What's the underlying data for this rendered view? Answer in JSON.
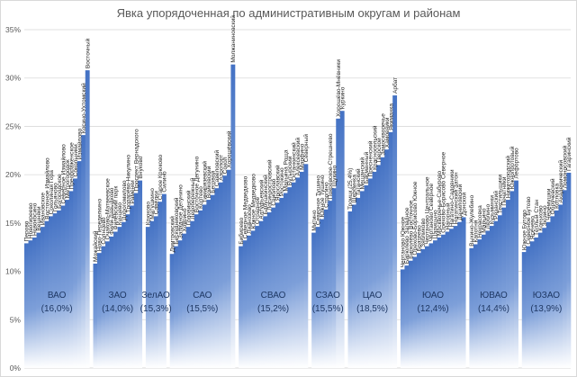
{
  "chart_data": {
    "type": "bar",
    "title": "Явка упорядоченная по административным округам и районам",
    "ylim": [
      0,
      35
    ],
    "yticks": [
      "0%",
      "5%",
      "10%",
      "15%",
      "20%",
      "25%",
      "30%",
      "35%"
    ],
    "grid": true,
    "bar_color": "#4472c4",
    "groups": [
      {
        "label": "ВАО",
        "pct": "(16,0%)",
        "districts": [
          "Перово",
          "Новогиреево",
          "Новокосино",
          "Вешняки",
          "Ивановское",
          "Восточное Измайлово",
          "Соколиная Гора",
          "Гольяново",
          "Богородское",
          "Северное Измайлово",
          "Метрогородок",
          "Преображенское",
          "Сокольники",
          "Измайлово",
          "Косино-Ухтомский",
          "Восточный"
        ],
        "values": [
          12.9,
          13.2,
          13.5,
          14.0,
          14.6,
          15.2,
          15.7,
          16.0,
          16.3,
          16.8,
          17.4,
          18.3,
          19.6,
          21.4,
          24.1,
          30.8
        ]
      },
      {
        "label": "ЗАО",
        "pct": "(14,0%)",
        "districts": [
          "Можайский",
          "Ново-Переделкино",
          "Солнцево",
          "Очаково-Матвеевское",
          "Фили-Давыдково",
          "Филёвский парк",
          "Кунцево",
          "Дорогомилово",
          "Тропарёво-Никулино",
          "Раменки",
          "Проспект Вернадского",
          "Внуково"
        ],
        "values": [
          10.8,
          11.9,
          12.6,
          13.1,
          13.6,
          14.1,
          14.6,
          15.1,
          15.9,
          16.8,
          18.1,
          19.4
        ]
      },
      {
        "label": "ЗелАО",
        "pct": "(15,3%)",
        "districts": [
          "Крюково",
          "Матушкино",
          "Савёлки",
          "Старое Крюково",
          "Силино"
        ],
        "values": [
          14.6,
          15.2,
          15.7,
          17.2,
          18.0
        ]
      },
      {
        "label": "САО",
        "pct": "(15,5%)",
        "districts": [
          "Дмитровский",
          "Бескудниковский",
          "Западное Дегунино",
          "Ховрино",
          "Головинский",
          "Левобережный",
          "Восточное Дегунино",
          "Коптево",
          "Тимирязевский",
          "Войковский",
          "Беговой",
          "Савёловский",
          "Аэропорт",
          "Сокол",
          "Хорошёвский",
          "Молжаниновский"
        ],
        "values": [
          11.8,
          12.6,
          13.2,
          13.9,
          14.6,
          15.2,
          15.9,
          16.3,
          16.9,
          17.4,
          17.9,
          18.6,
          19.2,
          19.9,
          20.5,
          31.4
        ]
      },
      {
        "label": "СВАО",
        "pct": "(15,2%)",
        "districts": [
          "Бибирево",
          "Северное Медведково",
          "Лианозово",
          "Южное Медведково",
          "Отрадное",
          "Алтуфьевский",
          "Бабушкинский",
          "Лосиноостровский",
          "Свиблово",
          "Ярославский",
          "Ростокино",
          "Марьина Роща",
          "Бутырский",
          "Останкинский",
          "Алексеевский",
          "Марфино",
          "Северный"
        ],
        "values": [
          12.6,
          13.2,
          13.7,
          14.2,
          14.7,
          15.2,
          15.7,
          16.1,
          16.6,
          17.1,
          17.6,
          18.1,
          18.7,
          19.2,
          19.7,
          20.3,
          21.1
        ]
      },
      {
        "label": "СЗАО",
        "pct": "(15,5%)",
        "districts": [
          "Митино",
          "Северное Тушино",
          "Южное Тушино",
          "Строгино",
          "Покровское-Стрешнево",
          "Щукино",
          "Хорошёво-Мнёвники",
          "Куркино"
        ],
        "values": [
          14.0,
          14.6,
          15.4,
          16.4,
          17.3,
          18.6,
          25.8,
          26.6
        ]
      },
      {
        "label": "ЦАО",
        "pct": "(18,5%)",
        "districts": [
          "Троицк (25,4%)",
          "Щербинка",
          "Таганский",
          "Мещанский",
          "Басманный",
          "Пресненский",
          "Красносельский",
          "Тверской",
          "Замоскворечье",
          "Хамовники",
          "Якиманка",
          "Арбат"
        ],
        "values": [
          16.2,
          16.9,
          17.6,
          18.3,
          18.9,
          19.6,
          20.3,
          21.0,
          21.8,
          22.6,
          24.4,
          28.2
        ]
      },
      {
        "label": "ЮАО",
        "pct": "(12,4%)",
        "districts": [
          "Чертаново Южное",
          "Бирюлёво Западное",
          "Бирюлёво Восточное",
          "Орехово-Борисово Южное",
          "Братеево",
          "Зябликово",
          "Чертаново Центральное",
          "Чертаново Северное",
          "Царицыно",
          "Москворечье-Сабурово",
          "Орехово-Борисово Северное",
          "Нагорный",
          "Нагатино-Садовники",
          "Нагатинский Затон",
          "Даниловский",
          "Донской"
        ],
        "values": [
          10.2,
          10.6,
          11.1,
          11.5,
          11.9,
          12.3,
          12.6,
          12.9,
          13.2,
          13.5,
          13.8,
          14.1,
          14.4,
          14.7,
          15.1,
          15.6
        ]
      },
      {
        "label": "ЮВАО",
        "pct": "(14,4%)",
        "districts": [
          "Выхино-Жулебино",
          "Капотня",
          "Некрасовка",
          "Марьино",
          "Люблино",
          "Кузьминки",
          "Рязанский",
          "Текстильщики",
          "Печатники",
          "Нижегородский",
          "Южнопортовый",
          "Лефортово"
        ],
        "values": [
          12.4,
          12.8,
          13.3,
          13.8,
          14.2,
          14.7,
          15.2,
          15.8,
          16.6,
          17.4,
          18.3,
          19.4
        ]
      },
      {
        "label": "ЮЗАО",
        "pct": "(13,9%)",
        "districts": [
          "Южное Бутово",
          "Северное Бутово",
          "Ясенево",
          "Тёплый Стан",
          "Коньково",
          "Зюзино",
          "Черёмушки",
          "Обручевский",
          "Котловка",
          "Академический",
          "Ломоносовский",
          "Гагаринский"
        ],
        "values": [
          12.0,
          12.6,
          13.1,
          13.5,
          14.0,
          14.5,
          15.1,
          15.7,
          16.3,
          16.9,
          18.4,
          20.2
        ]
      }
    ]
  }
}
